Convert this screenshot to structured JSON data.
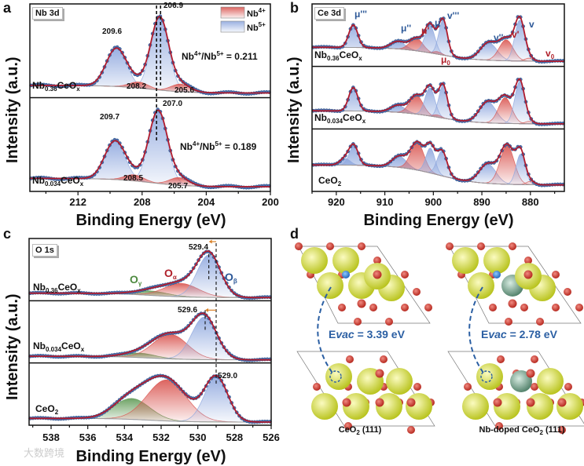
{
  "panel_letters": {
    "a": "a",
    "b": "b",
    "c": "c",
    "d": "d"
  },
  "y_axis_label": "Intensity (a.u.)",
  "x_axis_label": "Binding Energy (eV)",
  "watermark": "大数跨境",
  "colors": {
    "envelope": "#b01c2e",
    "points": "#4a72b0",
    "red_component": "#d9544f",
    "blue_component": "#8ea7de",
    "green_component": "#5f9a55",
    "background_line": "#999999"
  },
  "chart_data": [
    {
      "id": "a",
      "type": "line",
      "title": "Nb 3d",
      "xlabel": "Binding Energy (eV)",
      "ylabel": "Intensity (a.u.)",
      "xlim": [
        215,
        200
      ],
      "xticks": [
        "212",
        "208",
        "204",
        "200"
      ],
      "xtick_values": [
        212,
        208,
        204,
        200
      ],
      "legend": [
        {
          "label": "Nb",
          "sup": "4+",
          "color": "red"
        },
        {
          "label": "Nb",
          "sup": "5+",
          "color": "blue"
        }
      ],
      "legend_placement": "top-right",
      "reference_lines": [
        {
          "x": 207.1,
          "span": "all"
        },
        {
          "x": 206.85,
          "span": "first"
        }
      ],
      "samples": [
        {
          "name": [
            "Nb",
            "0.36",
            "CeO",
            "x"
          ],
          "ratio": {
            "a": "Nb",
            "a_sup": "4+",
            "b": "/Nb",
            "b_sup": "5+",
            "value": " = 0.211"
          },
          "background": [
            0.12,
            0.02
          ],
          "components": [
            {
              "center": 209.6,
              "amp": 0.5,
              "fwhm": 1.5,
              "type": "blue"
            },
            {
              "center": 206.9,
              "amp": 0.95,
              "fwhm": 1.3,
              "type": "blue"
            },
            {
              "center": 208.2,
              "amp": 0.08,
              "fwhm": 1.4,
              "type": "red"
            },
            {
              "center": 205.6,
              "amp": 0.1,
              "fwhm": 1.4,
              "type": "red"
            }
          ],
          "peak_labels": [
            "206.9",
            "209.6",
            "208.2",
            "205.6"
          ]
        },
        {
          "name": [
            "Nb",
            "0.034",
            "CeO",
            "x"
          ],
          "ratio": {
            "a": "Nb",
            "a_sup": "4+",
            "b": "/Nb",
            "b_sup": "5+",
            "value": " = 0.189"
          },
          "background": [
            0.13,
            0.02
          ],
          "components": [
            {
              "center": 209.7,
              "amp": 0.5,
              "fwhm": 1.5,
              "type": "blue"
            },
            {
              "center": 207.0,
              "amp": 0.95,
              "fwhm": 1.35,
              "type": "blue"
            },
            {
              "center": 208.5,
              "amp": 0.08,
              "fwhm": 1.4,
              "type": "red"
            },
            {
              "center": 205.7,
              "amp": 0.1,
              "fwhm": 1.4,
              "type": "red"
            }
          ],
          "peak_labels": [
            "207.0",
            "209.7",
            "208.5",
            "205.7"
          ]
        }
      ]
    },
    {
      "id": "b",
      "type": "line",
      "title": "Ce 3d",
      "xlabel": "Binding Energy (eV)",
      "ylabel": "Intensity (a.u.)",
      "xlim": [
        925,
        873
      ],
      "xticks": [
        "920",
        "910",
        "900",
        "890",
        "880"
      ],
      "xtick_values": [
        920,
        910,
        900,
        890,
        880
      ],
      "peak_names": {
        "u3": "μ'''",
        "u2": "μ''",
        "u1": "μ'",
        "u": "μ",
        "v3": "v'''",
        "v2": "v''",
        "v1": "v'",
        "v": "v",
        "u0": "μ",
        "u0_sub": "0",
        "v0": "v",
        "v0_sub": "0"
      },
      "samples": [
        {
          "name": [
            "Nb",
            "0.36",
            "CeO",
            "x"
          ],
          "background": [
            0.32,
            0.04
          ],
          "components": [
            {
              "center": 916.5,
              "amp": 0.45,
              "fwhm": 2.2,
              "type": "blue"
            },
            {
              "center": 907.3,
              "amp": 0.15,
              "fwhm": 3.5,
              "type": "blue"
            },
            {
              "center": 903.5,
              "amp": 0.25,
              "fwhm": 3.2,
              "type": "red"
            },
            {
              "center": 900.7,
              "amp": 0.55,
              "fwhm": 2.4,
              "type": "blue"
            },
            {
              "center": 899.2,
              "amp": 0.05,
              "fwhm": 2,
              "type": "red"
            },
            {
              "center": 898.0,
              "amp": 0.7,
              "fwhm": 2.1,
              "type": "blue"
            },
            {
              "center": 888.6,
              "amp": 0.35,
              "fwhm": 4,
              "type": "blue"
            },
            {
              "center": 885.0,
              "amp": 0.42,
              "fwhm": 3.4,
              "type": "red"
            },
            {
              "center": 882.2,
              "amp": 0.82,
              "fwhm": 2.4,
              "type": "blue"
            },
            {
              "center": 880.3,
              "amp": 0.06,
              "fwhm": 2,
              "type": "red"
            }
          ]
        },
        {
          "name": [
            "Nb",
            "0.034",
            "CeO",
            "x"
          ],
          "background": [
            0.32,
            0.04
          ],
          "components": [
            {
              "center": 916.5,
              "amp": 0.5,
              "fwhm": 2.2,
              "type": "blue"
            },
            {
              "center": 907.3,
              "amp": 0.15,
              "fwhm": 3.5,
              "type": "blue"
            },
            {
              "center": 903.5,
              "amp": 0.4,
              "fwhm": 3.2,
              "type": "red"
            },
            {
              "center": 900.7,
              "amp": 0.6,
              "fwhm": 2.4,
              "type": "blue"
            },
            {
              "center": 899.2,
              "amp": 0.05,
              "fwhm": 2,
              "type": "red"
            },
            {
              "center": 898.0,
              "amp": 0.7,
              "fwhm": 2.1,
              "type": "blue"
            },
            {
              "center": 888.8,
              "amp": 0.45,
              "fwhm": 4,
              "type": "blue"
            },
            {
              "center": 885.2,
              "amp": 0.55,
              "fwhm": 3.2,
              "type": "red"
            },
            {
              "center": 882.2,
              "amp": 0.9,
              "fwhm": 2.4,
              "type": "blue"
            },
            {
              "center": 880.3,
              "amp": 0.05,
              "fwhm": 2,
              "type": "red"
            }
          ]
        },
        {
          "name": [
            "CeO",
            "2"
          ],
          "background": [
            0.42,
            0.06
          ],
          "components": [
            {
              "center": 918.2,
              "amp": 0.12,
              "fwhm": 2.5,
              "type": "blue"
            },
            {
              "center": 916.4,
              "amp": 0.35,
              "fwhm": 2.2,
              "type": "blue"
            },
            {
              "center": 907.0,
              "amp": 0.2,
              "fwhm": 3.5,
              "type": "blue"
            },
            {
              "center": 903.3,
              "amp": 0.5,
              "fwhm": 3.2,
              "type": "red"
            },
            {
              "center": 900.6,
              "amp": 0.45,
              "fwhm": 2.2,
              "type": "blue"
            },
            {
              "center": 898.2,
              "amp": 0.45,
              "fwhm": 2.4,
              "type": "blue"
            },
            {
              "center": 888.8,
              "amp": 0.35,
              "fwhm": 4,
              "type": "blue"
            },
            {
              "center": 884.8,
              "amp": 0.7,
              "fwhm": 3.4,
              "type": "red"
            },
            {
              "center": 882.0,
              "amp": 0.55,
              "fwhm": 2.2,
              "type": "blue"
            },
            {
              "center": 880.0,
              "amp": 0.06,
              "fwhm": 2,
              "type": "red"
            }
          ]
        }
      ]
    },
    {
      "id": "c",
      "type": "line",
      "title": "O 1s",
      "xlabel": "Binding Energy (eV)",
      "ylabel": "Intensity (a.u.)",
      "xlim": [
        539.2,
        526
      ],
      "xticks": [
        "538",
        "536",
        "534",
        "532",
        "530",
        "528",
        "526"
      ],
      "xtick_values": [
        538,
        536,
        534,
        532,
        530,
        528,
        526
      ],
      "component_names": {
        "gamma": "O",
        "gamma_sub": "γ",
        "alpha": "O",
        "alpha_sub": "α",
        "beta": "O",
        "beta_sub": "β"
      },
      "reference_lines": [
        {
          "x": 529.0,
          "span": "all"
        },
        {
          "x": 529.4,
          "span": "first"
        },
        {
          "x": 529.6,
          "span": "second"
        }
      ],
      "samples": [
        {
          "name": [
            "Nb",
            "0.36",
            "CeO",
            "x"
          ],
          "background": [
            0.1,
            0.0
          ],
          "peak_label": "529.4",
          "components": [
            {
              "center": 532.6,
              "amp": 0.1,
              "fwhm": 2.2,
              "type": "green"
            },
            {
              "center": 530.9,
              "amp": 0.3,
              "fwhm": 2.2,
              "type": "red"
            },
            {
              "center": 529.4,
              "amp": 0.95,
              "fwhm": 1.5,
              "type": "blue"
            }
          ]
        },
        {
          "name": [
            "Nb",
            "0.034",
            "CeO",
            "x"
          ],
          "background": [
            0.08,
            0.0
          ],
          "peak_label": "529.6",
          "components": [
            {
              "center": 533.2,
              "amp": 0.1,
              "fwhm": 2.0,
              "type": "green"
            },
            {
              "center": 531.5,
              "amp": 0.55,
              "fwhm": 2.2,
              "type": "red"
            },
            {
              "center": 529.65,
              "amp": 0.95,
              "fwhm": 1.6,
              "type": "blue"
            }
          ]
        },
        {
          "name": [
            "CeO",
            "2"
          ],
          "background": [
            0.05,
            0.0
          ],
          "peak_label": "529.0",
          "components": [
            {
              "center": 533.6,
              "amp": 0.28,
              "fwhm": 2.3,
              "type": "green"
            },
            {
              "center": 531.7,
              "amp": 0.55,
              "fwhm": 2.5,
              "type": "red"
            },
            {
              "center": 529.0,
              "amp": 0.6,
              "fwhm": 1.5,
              "type": "blue"
            }
          ]
        }
      ]
    }
  ],
  "structures": {
    "left": {
      "evac_label": "E",
      "evac_sub": "vac",
      "evac_value": " = 3.39 eV",
      "caption": [
        "CeO",
        "2",
        " (111)"
      ]
    },
    "right": {
      "evac_label": "E",
      "evac_sub": "vac",
      "evac_value": " = 2.78 eV",
      "caption": [
        "Nb-doped CeO",
        "2",
        " (111)"
      ]
    }
  }
}
